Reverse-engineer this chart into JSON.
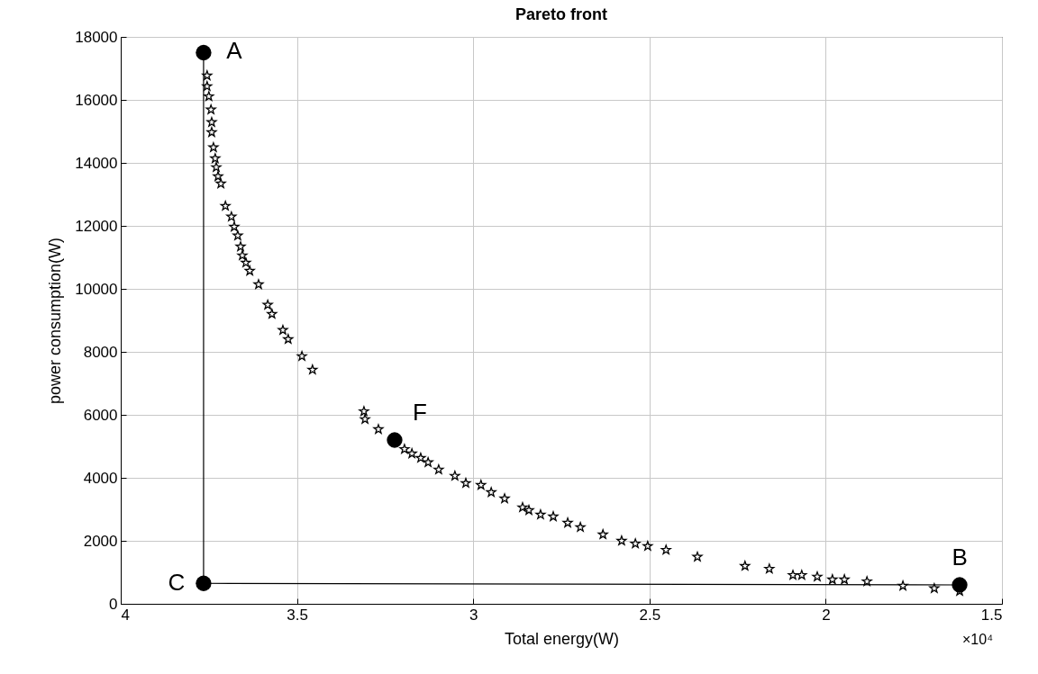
{
  "chart_data": {
    "type": "scatter",
    "title": "Pareto front",
    "xlabel": "Total energy(W)",
    "ylabel": "power consumption(W)",
    "xlim": [
      4,
      1.5
    ],
    "xticks": [
      4,
      3.5,
      3,
      2.5,
      2,
      1.5
    ],
    "ylim": [
      0,
      18000
    ],
    "yticks": [
      0,
      2000,
      4000,
      6000,
      8000,
      10000,
      12000,
      14000,
      16000,
      18000
    ],
    "grid": true,
    "series": [
      {
        "type": "line",
        "color": "#000000",
        "marker": "none",
        "x": [
          3.765,
          3.765,
          1.62
        ],
        "values": [
          17500,
          650,
          600
        ]
      },
      {
        "color": "#000000",
        "marker": "star",
        "x": [
          3.755,
          3.755,
          3.75,
          3.744,
          3.742,
          3.742,
          3.737,
          3.732,
          3.729,
          3.724,
          3.716,
          3.703,
          3.686,
          3.678,
          3.668,
          3.66,
          3.655,
          3.645,
          3.634,
          3.609,
          3.583,
          3.571,
          3.54,
          3.525,
          3.486,
          3.456,
          3.31,
          3.307,
          3.269,
          3.195,
          3.174,
          3.149,
          3.128,
          3.098,
          3.052,
          3.021,
          2.978,
          2.949,
          2.911,
          2.86,
          2.842,
          2.809,
          2.773,
          2.732,
          2.696,
          2.632,
          2.579,
          2.54,
          2.505,
          2.453,
          2.364,
          2.229,
          2.16,
          2.093,
          2.068,
          2.024,
          1.981,
          1.947,
          1.883,
          1.781,
          1.692,
          1.62
        ],
        "values": [
          16770,
          16430,
          16110,
          15690,
          15290,
          14970,
          14490,
          14140,
          13860,
          13570,
          13340,
          12630,
          12290,
          11970,
          11690,
          11340,
          11060,
          10830,
          10570,
          10140,
          9490,
          9200,
          8690,
          8400,
          7860,
          7430,
          6110,
          5860,
          5540,
          4910,
          4770,
          4630,
          4490,
          4260,
          4060,
          3830,
          3770,
          3540,
          3340,
          3060,
          2970,
          2830,
          2770,
          2570,
          2430,
          2200,
          2000,
          1910,
          1830,
          1710,
          1490,
          1200,
          1110,
          910,
          910,
          860,
          770,
          770,
          710,
          570,
          490,
          400
        ]
      },
      {
        "color": "#000000",
        "marker": "circle",
        "x": [
          3.765,
          1.62,
          3.765,
          3.223
        ],
        "values": [
          17500,
          600,
          650,
          5200
        ]
      }
    ],
    "annotations": [
      {
        "text": "A",
        "x": 3.765,
        "y": 17500
      },
      {
        "text": "B",
        "x": 1.62,
        "y": 600
      },
      {
        "text": "C",
        "x": 3.765,
        "y": 650
      },
      {
        "text": "F",
        "x": 3.223,
        "y": 5200
      },
      "×10⁴"
    ]
  }
}
